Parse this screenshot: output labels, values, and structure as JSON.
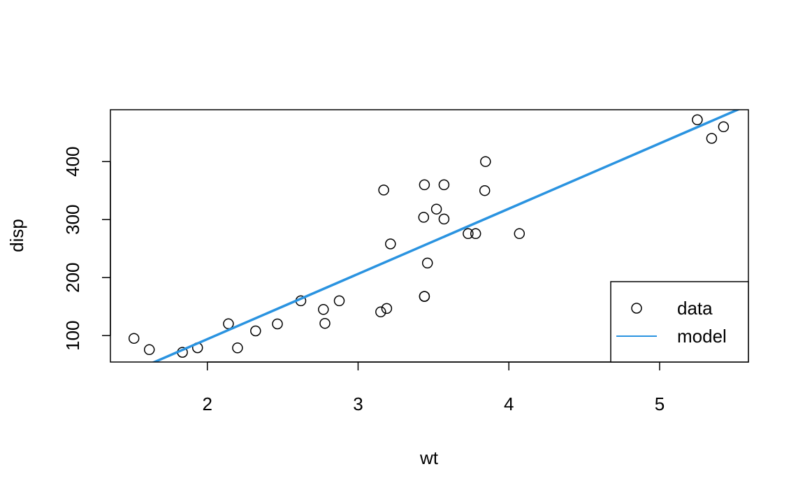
{
  "chart_data": {
    "type": "scatter",
    "xlabel": "wt",
    "ylabel": "disp",
    "xlim": [
      1.357,
      5.589
    ],
    "ylim": [
      54.4,
      489.4
    ],
    "x_ticks": [
      2,
      3,
      4,
      5
    ],
    "y_ticks": [
      100,
      200,
      300,
      400
    ],
    "legend_position": "bottom-right",
    "grid": false,
    "series": [
      {
        "name": "data",
        "kind": "points",
        "color": "#000000",
        "points": [
          [
            2.62,
            160
          ],
          [
            2.875,
            160
          ],
          [
            2.32,
            108
          ],
          [
            3.215,
            258
          ],
          [
            3.44,
            360
          ],
          [
            3.46,
            225
          ],
          [
            3.57,
            360
          ],
          [
            3.19,
            146.7
          ],
          [
            3.15,
            140.8
          ],
          [
            3.44,
            167.6
          ],
          [
            3.44,
            167.6
          ],
          [
            4.07,
            275.8
          ],
          [
            3.73,
            275.8
          ],
          [
            3.78,
            275.8
          ],
          [
            5.25,
            472
          ],
          [
            5.424,
            460
          ],
          [
            5.345,
            440
          ],
          [
            2.2,
            78.7
          ],
          [
            1.615,
            75.7
          ],
          [
            1.835,
            71.1
          ],
          [
            2.465,
            120.1
          ],
          [
            3.52,
            318
          ],
          [
            3.435,
            304
          ],
          [
            3.84,
            350
          ],
          [
            3.845,
            400
          ],
          [
            1.935,
            79
          ],
          [
            2.14,
            120.3
          ],
          [
            1.513,
            95.1
          ],
          [
            3.17,
            351
          ],
          [
            2.77,
            145
          ],
          [
            3.57,
            301
          ],
          [
            2.78,
            121
          ]
        ]
      },
      {
        "name": "model",
        "kind": "line",
        "color": "#2a93e0",
        "intercept": -131.15,
        "slope": 112.48
      }
    ]
  }
}
